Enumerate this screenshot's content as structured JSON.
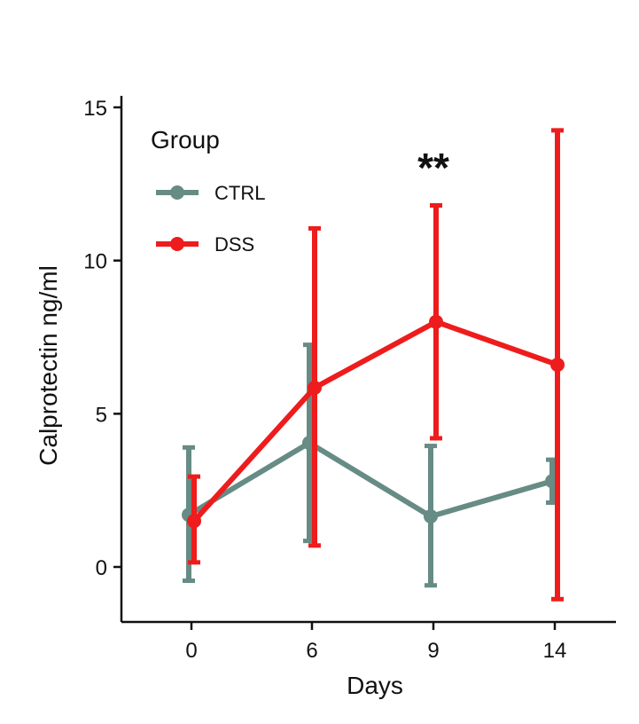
{
  "chart_data": {
    "type": "line",
    "title": "",
    "xlabel": "Days",
    "ylabel": "Calprotectin ng/ml",
    "categories": [
      "0",
      "6",
      "9",
      "14"
    ],
    "x": [
      0,
      6,
      9,
      14
    ],
    "ylim": [
      -1.8,
      15
    ],
    "yticks": [
      0,
      5,
      10,
      15
    ],
    "grid": false,
    "legend": {
      "title": "Group",
      "position": "top-left"
    },
    "series": [
      {
        "name": "CTRL",
        "color": "#678b85",
        "values": [
          1.7,
          4.05,
          1.65,
          2.8
        ],
        "err_low": [
          -0.45,
          0.85,
          -0.6,
          2.1
        ],
        "err_high": [
          3.9,
          7.25,
          3.95,
          3.5
        ]
      },
      {
        "name": "DSS",
        "color": "#ee1c1c",
        "values": [
          1.5,
          5.85,
          8.0,
          6.6
        ],
        "err_low": [
          0.15,
          0.7,
          4.2,
          -1.05
        ],
        "err_high": [
          2.95,
          11.05,
          11.8,
          14.25
        ]
      }
    ],
    "annotations": [
      {
        "text": "**",
        "x": "9"
      }
    ]
  }
}
